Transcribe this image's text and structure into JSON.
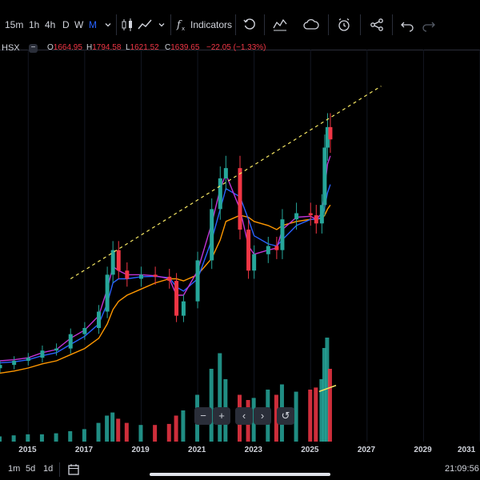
{
  "toolbar": {
    "timeframes": [
      "15m",
      "1h",
      "4h",
      "D",
      "W",
      "M"
    ],
    "active_timeframe": "M",
    "indicators_label": "Indicators",
    "icons": [
      "chevron-down-icon",
      "candles-icon",
      "line-chart-icon",
      "chevron-down-icon",
      "fx-icon",
      "replay-icon",
      "compare-icon",
      "cloud-icon",
      "alert-clock-icon",
      "share-icon",
      "undo-icon",
      "redo-icon"
    ]
  },
  "legend": {
    "symbol": "HSX",
    "collapse_glyph": "−",
    "open_key": "O",
    "open": "1664.95",
    "high_key": "H",
    "high": "1794.58",
    "low_key": "L",
    "low": "1621.52",
    "close_key": "C",
    "close": "1639.65",
    "change": "−22.05 (−1.33%)"
  },
  "colors": {
    "up": "#26a69a",
    "down": "#f23645",
    "ma_fast": "#c233d6",
    "ma_mid": "#2962ff",
    "ma_slow": "#ff9800",
    "trendline": "#f5e663",
    "forecast": "#f5e663",
    "vol_up": "#26a69a",
    "vol_down": "#f23645",
    "accent": "#2962ff"
  },
  "axis": {
    "years": [
      "2015",
      "2017",
      "2019",
      "2021",
      "2023",
      "2025",
      "2027",
      "2029",
      "2031"
    ]
  },
  "nav": {
    "buttons": [
      {
        "name": "zoom-out-button",
        "glyph": "−"
      },
      {
        "name": "zoom-in-button",
        "glyph": "+"
      },
      {
        "name": "scroll-left-button",
        "glyph": "‹"
      },
      {
        "name": "scroll-right-button",
        "glyph": "›"
      },
      {
        "name": "reset-chart-button",
        "glyph": "↺"
      }
    ]
  },
  "bottombar": {
    "ranges": [
      "1m",
      "5d",
      "1d"
    ],
    "time": "21:09:56"
  },
  "chart_data": {
    "type": "candlestick",
    "interval": "monthly",
    "x_range": [
      "2014",
      "2031"
    ],
    "y_range": [
      400,
      2000
    ],
    "dates": [
      "2014.0",
      "2014.5",
      "2015.0",
      "2015.5",
      "2016.0",
      "2016.5",
      "2017.0",
      "2017.5",
      "2017.8",
      "2018.0",
      "2018.2",
      "2018.5",
      "2019.0",
      "2019.5",
      "2020.0",
      "2020.25",
      "2020.5",
      "2021.0",
      "2021.5",
      "2021.8",
      "2022.0",
      "2022.5",
      "2022.8",
      "2023.0",
      "2023.5",
      "2023.8",
      "2024.0",
      "2024.5",
      "2025.0",
      "2025.2",
      "2025.4",
      "2025.5",
      "2025.6",
      "2025.7"
    ],
    "close": [
      540,
      560,
      575,
      610,
      620,
      690,
      720,
      800,
      980,
      1100,
      1000,
      960,
      980,
      970,
      950,
      780,
      850,
      1050,
      1300,
      1450,
      1500,
      1200,
      1000,
      1080,
      1120,
      1100,
      1250,
      1280,
      1270,
      1230,
      1320,
      1600,
      1700,
      1640
    ],
    "ma_fast": [
      560,
      565,
      575,
      600,
      615,
      670,
      710,
      780,
      910,
      1020,
      1000,
      980,
      980,
      975,
      960,
      880,
      880,
      1000,
      1230,
      1400,
      1470,
      1300,
      1120,
      1080,
      1100,
      1110,
      1200,
      1260,
      1265,
      1250,
      1280,
      1400,
      1520,
      1560
    ],
    "ma_mid": [
      550,
      555,
      565,
      585,
      600,
      640,
      680,
      740,
      840,
      940,
      960,
      960,
      970,
      972,
      965,
      920,
      900,
      960,
      1150,
      1300,
      1400,
      1360,
      1250,
      1170,
      1130,
      1120,
      1150,
      1220,
      1250,
      1250,
      1260,
      1310,
      1380,
      1420
    ],
    "ma_slow": [
      500,
      510,
      525,
      545,
      560,
      590,
      620,
      670,
      740,
      810,
      850,
      880,
      910,
      940,
      960,
      960,
      950,
      980,
      1060,
      1150,
      1240,
      1270,
      1260,
      1240,
      1220,
      1200,
      1220,
      1240,
      1250,
      1250,
      1255,
      1270,
      1300,
      1320
    ],
    "volume_relative": [
      0.05,
      0.06,
      0.07,
      0.07,
      0.08,
      0.1,
      0.12,
      0.18,
      0.25,
      0.28,
      0.22,
      0.18,
      0.16,
      0.16,
      0.17,
      0.25,
      0.3,
      0.45,
      0.7,
      0.85,
      0.6,
      0.45,
      0.4,
      0.42,
      0.5,
      0.45,
      0.55,
      0.48,
      0.5,
      0.52,
      0.6,
      0.9,
      1.0,
      0.7
    ],
    "trendline": {
      "from": {
        "x": "2016.5",
        "y": 960
      },
      "to": {
        "x": "2027.5",
        "y": 1900
      }
    },
    "forecast_segment": {
      "from": {
        "x": "2025.3",
        "y": 410
      },
      "to": {
        "x": "2025.9",
        "y": 440
      }
    },
    "last_price": 1639.65
  }
}
